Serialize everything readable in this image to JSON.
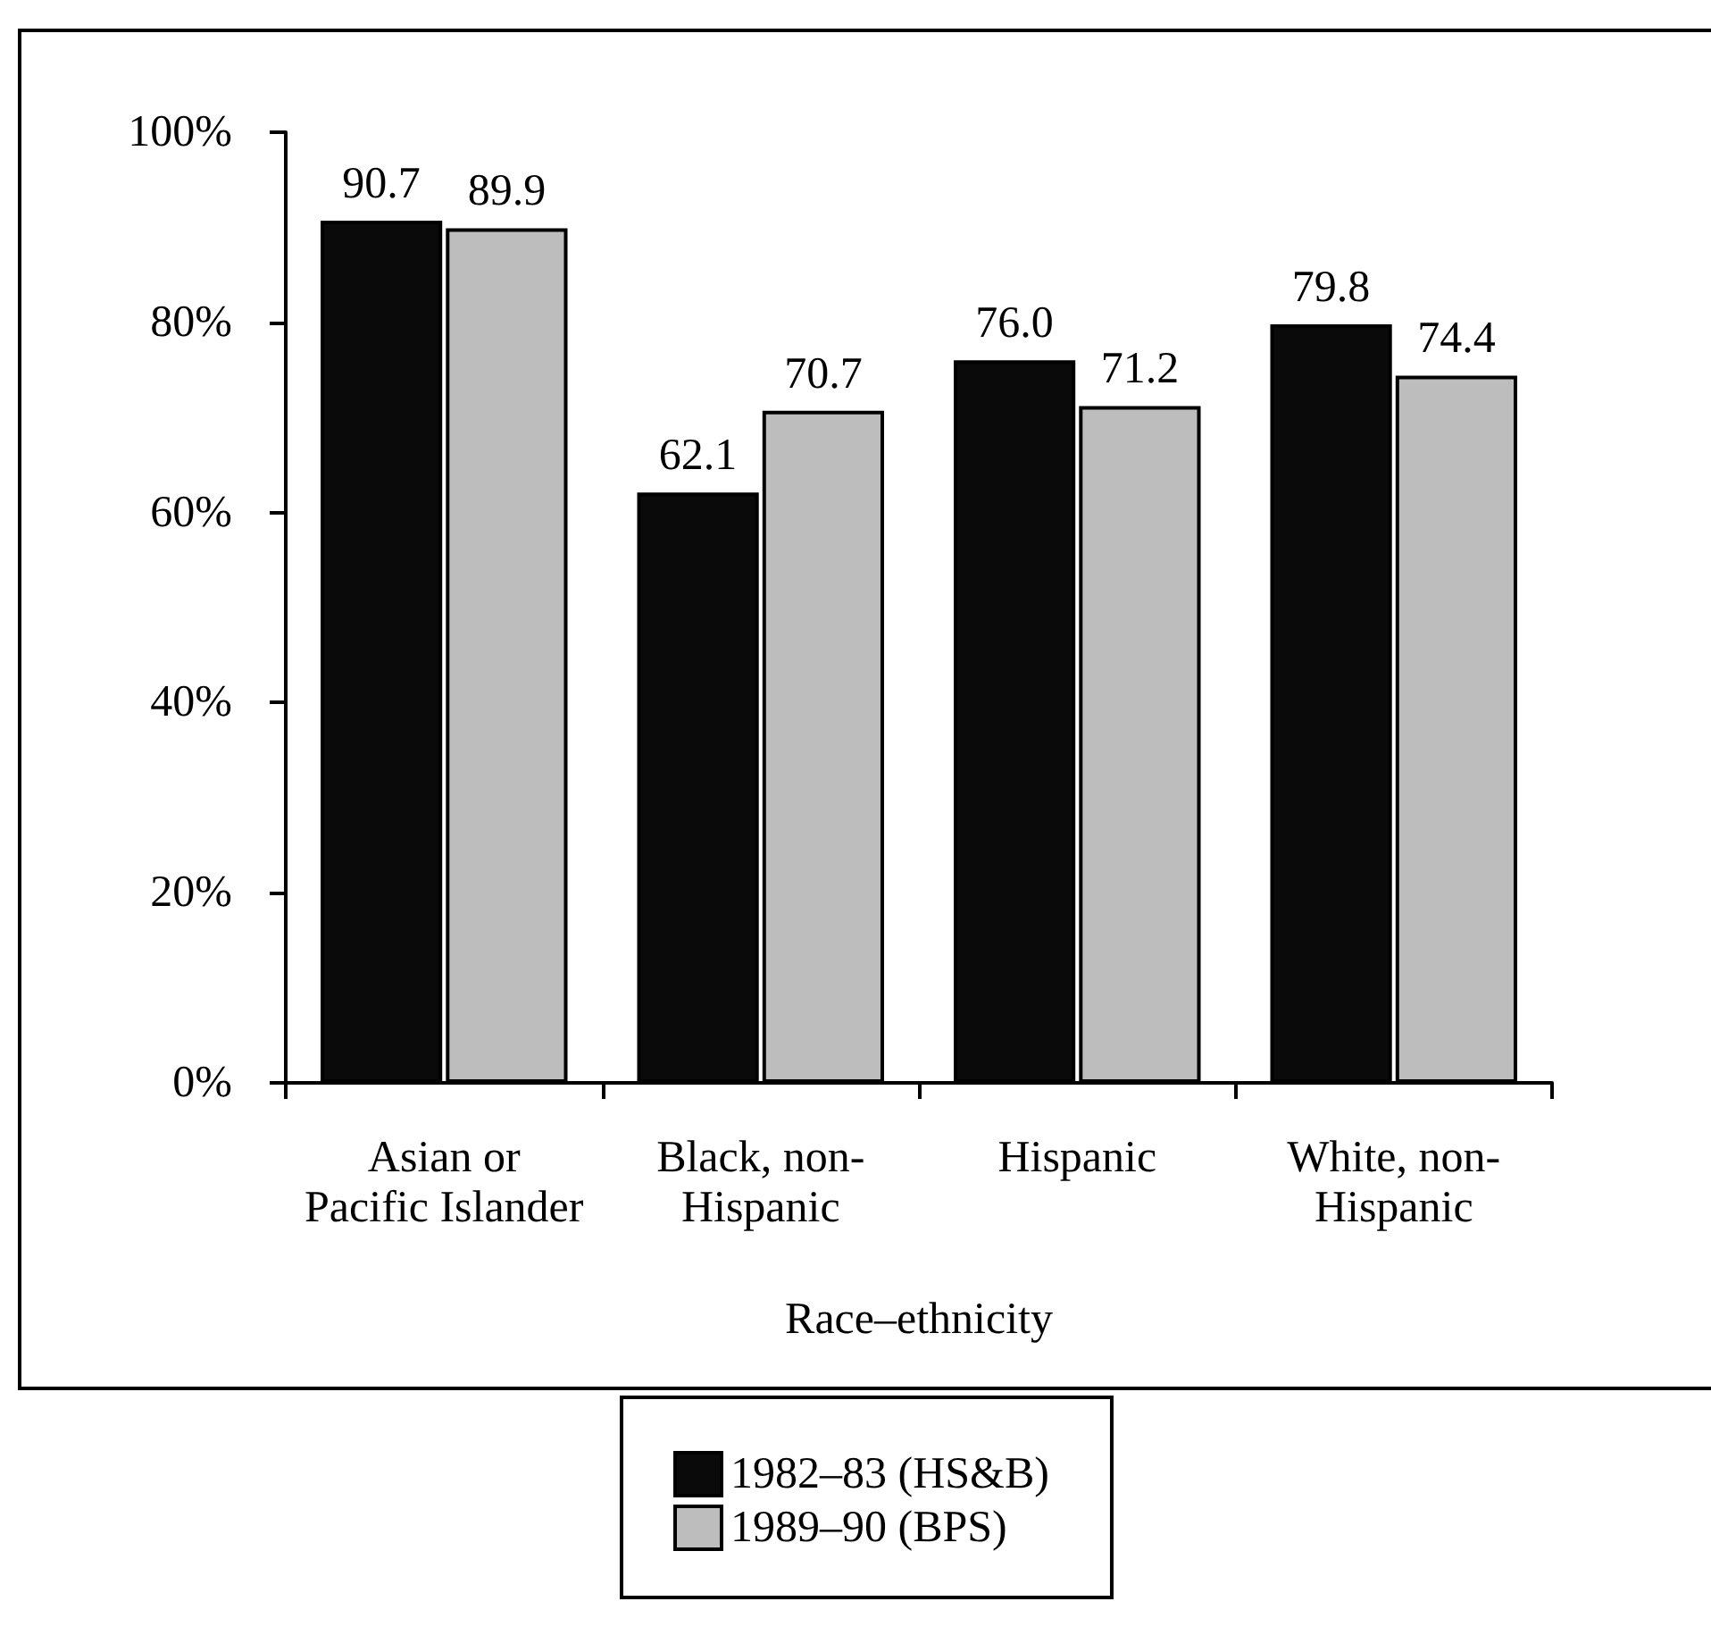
{
  "chart_data": {
    "type": "bar",
    "categories": [
      "Asian or\nPacific Islander",
      "Black, non-\nHispanic",
      "Hispanic",
      "White, non-\nHispanic"
    ],
    "series": [
      {
        "name": "1982–83 (HS&B)",
        "color": "#0a0a0a",
        "values": [
          90.7,
          62.1,
          76.0,
          79.8
        ],
        "value_labels": [
          "90.7",
          "62.1",
          "76.0",
          "79.8"
        ]
      },
      {
        "name": "1989–90 (BPS)",
        "color": "#bdbdbd",
        "values": [
          89.9,
          70.7,
          71.2,
          74.4
        ],
        "value_labels": [
          "89.9",
          "70.7",
          "71.2",
          "74.4"
        ]
      }
    ],
    "xlabel": "Race–ethnicity",
    "ylim": [
      0,
      100
    ],
    "yticks": [
      {
        "value": 0,
        "label": "0%"
      },
      {
        "value": 20,
        "label": "20%"
      },
      {
        "value": 40,
        "label": "40%"
      },
      {
        "value": 60,
        "label": "60%"
      },
      {
        "value": 80,
        "label": "80%"
      },
      {
        "value": 100,
        "label": "100%"
      }
    ],
    "legend": "bottom"
  }
}
